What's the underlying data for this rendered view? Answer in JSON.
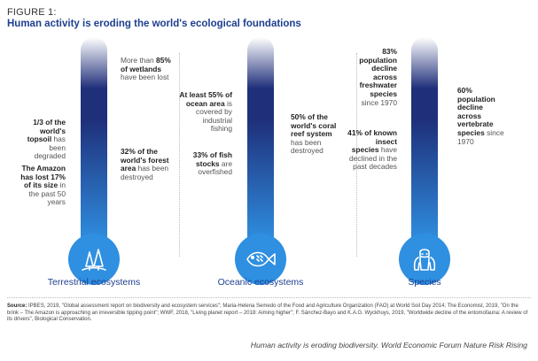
{
  "figure_label": "FIGURE 1:",
  "title": "Human activity is eroding the world's ecological foundations",
  "columns": [
    {
      "category": "Terrestrial ecosystems",
      "icon": "trees-icon",
      "left_stats": [
        {
          "bold": "1/3 of the world's topsoil",
          "text": "has been degraded"
        },
        {
          "bold": "The Amazon has lost 17% of its size",
          "text": "in the past 50 years"
        }
      ],
      "right_stats": [
        {
          "pre": "More than",
          "bold": "85% of wetlands",
          "text": "have been lost"
        },
        {
          "bold": "32% of the world's forest area",
          "text": "has been destroyed"
        }
      ]
    },
    {
      "category": "Oceanic ecosystems",
      "icon": "fish-icon",
      "left_stats": [
        {
          "bold": "At least 55% of ocean area",
          "text": "is covered by industrial fishing"
        },
        {
          "bold": "33% of fish stocks",
          "text": "are overfished"
        }
      ],
      "right_stats": [
        {
          "bold": "50% of the world's coral reef system",
          "text": "has been destroyed"
        }
      ]
    },
    {
      "category": "Species",
      "icon": "gorilla-icon",
      "left_stats": [
        {
          "bold": "83% population decline across freshwater species",
          "text": "since 1970"
        },
        {
          "bold": "41% of known insect species",
          "text": "have declined in the past decades"
        }
      ],
      "right_stats": [
        {
          "bold": "60% population decline across vertebrate species",
          "text": "since 1970"
        }
      ]
    }
  ],
  "sources": {
    "label": "Source:",
    "text": "IPBES, 2019, \"Global assessment report on biodiversity and ecosystem services\"; Maria-Helena Semedo of the Food and Agriculture Organization (FAO) at World Soil Day 2014; The Economist, 2019, \"On the brink – The Amazon is approaching an irreversible tipping point\"; WWF, 2018, \"Living planet report – 2018: Aiming higher\"; F. Sánchez-Bayo and K.A.G. Wyckhuys, 2019, \"Worldwide decline of the entomofauna: A review of its drivers\", Biological Conservation."
  },
  "caption": "Human activity is eroding biodiversity. World Economic Forum Nature Risk Rising",
  "colors": {
    "title": "#1d3f8f",
    "tube_top": "#ffffff",
    "tube_mid": "#1f2f7a",
    "tube_bottom": "#2f8fe0",
    "bulb": "#2f8fe0"
  }
}
